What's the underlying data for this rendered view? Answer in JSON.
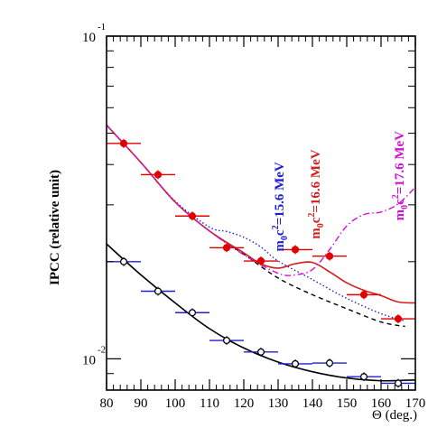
{
  "chart_data": {
    "type": "scatter",
    "title": "",
    "xlabel": "Θ (deg.)",
    "ylabel": "IPCC (relative unit)",
    "xlim": [
      80,
      170
    ],
    "ylim": [
      0.008,
      0.1
    ],
    "yscale": "log",
    "grid": false,
    "x_ticks": [
      80,
      90,
      100,
      110,
      120,
      130,
      140,
      150,
      160,
      170
    ],
    "y_ticks": [
      {
        "value": 0.1,
        "base": "10",
        "exp": "-1"
      },
      {
        "value": 0.01,
        "base": "10",
        "exp": "-2"
      }
    ],
    "annotations": [
      {
        "base": "m",
        "sub": "0",
        "mid": "c",
        "sup": "2",
        "rest": "=15.6 MeV",
        "color": "#1f1fd0"
      },
      {
        "base": "m",
        "sub": "0",
        "mid": "c",
        "sup": "2",
        "rest": "=16.6 MeV",
        "color": "#d11f1f"
      },
      {
        "base": "m",
        "sub": "0",
        "mid": "c",
        "sup": "2",
        "rest": "=17.6 MeV",
        "color": "#d40fd4"
      }
    ],
    "series": [
      {
        "color": "#e00000",
        "marker": "filled-circle",
        "points": [
          {
            "x": 85,
            "y": 0.0465,
            "xerr": 5
          },
          {
            "x": 95,
            "y": 0.0372,
            "xerr": 5
          },
          {
            "x": 105,
            "y": 0.0277,
            "xerr": 5
          },
          {
            "x": 115,
            "y": 0.0221,
            "xerr": 5
          },
          {
            "x": 125,
            "y": 0.0201,
            "xerr": 5
          },
          {
            "x": 135,
            "y": 0.0218,
            "xerr": 5
          },
          {
            "x": 145,
            "y": 0.0208,
            "xerr": 5
          },
          {
            "x": 155,
            "y": 0.0158,
            "xerr": 5
          },
          {
            "x": 165,
            "y": 0.0133,
            "xerr": 5
          }
        ]
      },
      {
        "color": "#000000",
        "marker": "open-circle",
        "points": [
          {
            "x": 85,
            "y": 0.02,
            "xerr": 5
          },
          {
            "x": 95,
            "y": 0.0162,
            "xerr": 5
          },
          {
            "x": 105,
            "y": 0.0139,
            "xerr": 5
          },
          {
            "x": 115,
            "y": 0.0114,
            "xerr": 5
          },
          {
            "x": 125,
            "y": 0.0105,
            "xerr": 5
          },
          {
            "x": 135,
            "y": 0.00965,
            "xerr": 5
          },
          {
            "x": 145,
            "y": 0.0097,
            "xerr": 5
          },
          {
            "x": 155,
            "y": 0.0088,
            "xerr": 5
          },
          {
            "x": 165,
            "y": 0.0084,
            "xerr": 5
          }
        ]
      }
    ],
    "curves": [
      {
        "color": "#000000",
        "style": "solid",
        "x": [
          80,
          90,
          100,
          110,
          120,
          130,
          140,
          150,
          160,
          170
        ],
        "y": [
          0.0227,
          0.0182,
          0.0149,
          0.0124,
          0.0108,
          0.00977,
          0.00912,
          0.00872,
          0.00855,
          0.0086
        ]
      },
      {
        "color": "#000000",
        "style": "dashed",
        "x": [
          80,
          90,
          100,
          110,
          120,
          130,
          140,
          150,
          160,
          167
        ],
        "y": [
          0.053,
          0.0406,
          0.0306,
          0.0249,
          0.0211,
          0.0178,
          0.0158,
          0.0143,
          0.013,
          0.0126
        ]
      },
      {
        "color": "#1f1fd0",
        "style": "dotted",
        "x": [
          80,
          90,
          100,
          110,
          115,
          120,
          125,
          130,
          140,
          150,
          160,
          167
        ],
        "y": [
          0.053,
          0.0406,
          0.0308,
          0.0256,
          0.0248,
          0.0238,
          0.0222,
          0.0201,
          0.0176,
          0.0154,
          0.0138,
          0.0131
        ]
      },
      {
        "color": "#d11f1f",
        "style": "solid",
        "x": [
          80,
          90,
          100,
          110,
          120,
          125,
          130,
          135,
          140,
          145,
          150,
          155,
          160,
          165,
          170
        ],
        "y": [
          0.053,
          0.0406,
          0.0306,
          0.0249,
          0.0213,
          0.0197,
          0.0191,
          0.0197,
          0.0199,
          0.0186,
          0.0172,
          0.0163,
          0.0157,
          0.015,
          0.0149
        ]
      },
      {
        "color": "#d40fd4",
        "style": "dashdot",
        "x": [
          80,
          90,
          100,
          110,
          120,
          130,
          135,
          140,
          145,
          150,
          155,
          160,
          165,
          170
        ],
        "y": [
          0.053,
          0.0406,
          0.0306,
          0.0249,
          0.021,
          0.0184,
          0.0182,
          0.0189,
          0.0218,
          0.0258,
          0.028,
          0.0285,
          0.0302,
          0.034
        ]
      }
    ]
  }
}
